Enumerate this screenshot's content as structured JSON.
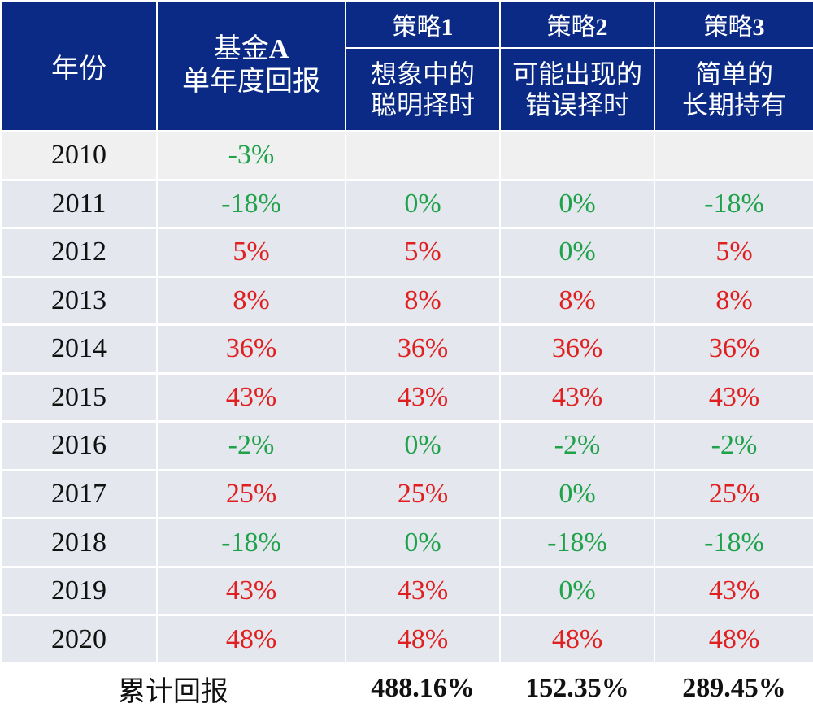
{
  "headers": {
    "year": "年份",
    "fund_line1": "基金",
    "fund_line1_bold": "A",
    "fund_line2": "单年度回报",
    "strategies": [
      {
        "name": "策略",
        "num": "1",
        "desc_line1": "想象中的",
        "desc_line2": "聪明择时"
      },
      {
        "name": "策略",
        "num": "2",
        "desc_line1": "可能出现的",
        "desc_line2": "错误择时"
      },
      {
        "name": "策略",
        "num": "3",
        "desc_line1": "简单的",
        "desc_line2": "长期持有"
      }
    ]
  },
  "rows": [
    {
      "year": "2010",
      "fund": "-3%",
      "s1": "",
      "s2": "",
      "s3": ""
    },
    {
      "year": "2011",
      "fund": "-18%",
      "s1": "0%",
      "s2": "0%",
      "s3": "-18%"
    },
    {
      "year": "2012",
      "fund": "5%",
      "s1": "5%",
      "s2": "0%",
      "s3": "5%"
    },
    {
      "year": "2013",
      "fund": "8%",
      "s1": "8%",
      "s2": "8%",
      "s3": "8%"
    },
    {
      "year": "2014",
      "fund": "36%",
      "s1": "36%",
      "s2": "36%",
      "s3": "36%"
    },
    {
      "year": "2015",
      "fund": "43%",
      "s1": "43%",
      "s2": "43%",
      "s3": "43%"
    },
    {
      "year": "2016",
      "fund": "-2%",
      "s1": "0%",
      "s2": "-2%",
      "s3": "-2%"
    },
    {
      "year": "2017",
      "fund": "25%",
      "s1": "25%",
      "s2": "0%",
      "s3": "25%"
    },
    {
      "year": "2018",
      "fund": "-18%",
      "s1": "0%",
      "s2": "-18%",
      "s3": "-18%"
    },
    {
      "year": "2019",
      "fund": "43%",
      "s1": "43%",
      "s2": "0%",
      "s3": "43%"
    },
    {
      "year": "2020",
      "fund": "48%",
      "s1": "48%",
      "s2": "48%",
      "s3": "48%"
    }
  ],
  "total": {
    "label": "累计回报",
    "s1": "488.16%",
    "s2": "152.35%",
    "s3": "289.45%"
  },
  "colors": {
    "header_bg": "#0a2a85",
    "positive": "#e02020",
    "negative": "#1fa24a",
    "zero": "#1fa24a"
  }
}
